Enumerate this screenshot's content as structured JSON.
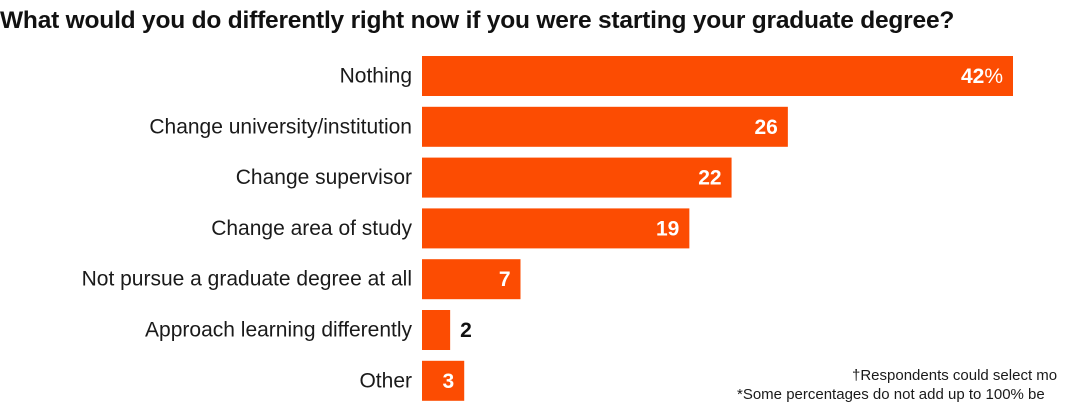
{
  "chart_data": {
    "type": "bar",
    "orientation": "horizontal",
    "title": "What would you do differently right now if you were starting your graduate degree?",
    "categories": [
      "Nothing",
      "Change university/institution",
      "Change supervisor",
      "Change area of study",
      "Not pursue a graduate degree at all",
      "Approach learning differently",
      "Other"
    ],
    "values": [
      42,
      26,
      22,
      19,
      7,
      2,
      3
    ],
    "value_unit": "%",
    "xlim": [
      0,
      42
    ],
    "grid": false,
    "legend": "none",
    "bar_color": "#fc4c02",
    "inside_label_color": "#ffffff",
    "outside_label_color": "#111111"
  },
  "footnotes": [
    "†Respondents could select mo",
    "*Some percentages do not add up to 100% be"
  ]
}
